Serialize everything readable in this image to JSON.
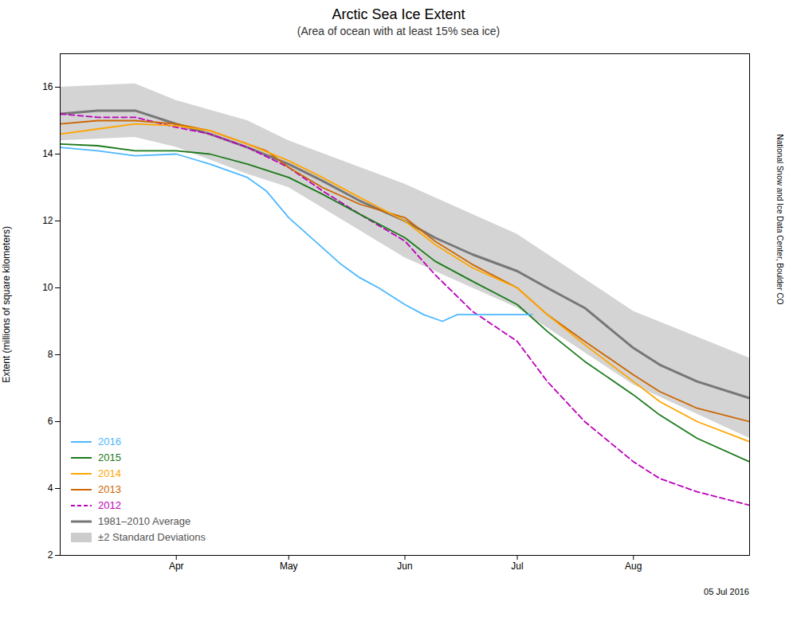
{
  "chart_data": {
    "type": "line",
    "title": "Arctic Sea Ice Extent",
    "subtitle": "(Area of ocean with at least 15% sea ice)",
    "ylabel": "Extent (millions of square kilometers)",
    "annotations": [
      "05 Jul 2016",
      "National Snow and Ice Data Center, Boulder CO"
    ],
    "xlim": [
      60,
      244
    ],
    "xticks": [
      {
        "value": 91,
        "label": "Apr"
      },
      {
        "value": 121,
        "label": "May"
      },
      {
        "value": 152,
        "label": "Jun"
      },
      {
        "value": 182,
        "label": "Jul"
      },
      {
        "value": 213,
        "label": "Aug"
      }
    ],
    "ylim": [
      2,
      17
    ],
    "yticks": [
      2,
      4,
      6,
      8,
      10,
      12,
      14,
      16
    ],
    "grid": false,
    "legend": "lower left",
    "series": [
      {
        "name": "2016",
        "color": "#4db8ff",
        "line_style": "solid",
        "x": [
          60,
          70,
          80,
          91,
          100,
          110,
          115,
          121,
          125,
          130,
          135,
          140,
          145,
          152,
          157,
          162,
          166,
          170,
          172,
          176,
          182,
          186
        ],
        "values": [
          14.2,
          14.1,
          13.95,
          14.0,
          13.7,
          13.3,
          12.9,
          12.1,
          11.7,
          11.2,
          10.7,
          10.3,
          10.0,
          9.5,
          9.2,
          9.0,
          9.2,
          9.2,
          9.2,
          9.2,
          9.2,
          9.2
        ]
      },
      {
        "name": "2015",
        "color": "#1a7a1a",
        "line_style": "solid",
        "x": [
          60,
          70,
          80,
          91,
          100,
          110,
          121,
          130,
          140,
          152,
          160,
          170,
          182,
          190,
          200,
          213,
          220,
          230,
          244
        ],
        "values": [
          14.3,
          14.25,
          14.1,
          14.1,
          14.0,
          13.7,
          13.3,
          12.8,
          12.2,
          11.5,
          10.8,
          10.2,
          9.5,
          8.7,
          7.8,
          6.8,
          6.2,
          5.5,
          4.8
        ]
      },
      {
        "name": "2014",
        "color": "#FFA500",
        "line_style": "solid",
        "x": [
          60,
          70,
          80,
          91,
          100,
          110,
          121,
          130,
          140,
          152,
          160,
          170,
          182,
          190,
          200,
          213,
          220,
          230,
          244
        ],
        "values": [
          14.6,
          14.75,
          14.9,
          14.85,
          14.7,
          14.3,
          13.8,
          13.3,
          12.7,
          12.0,
          11.3,
          10.6,
          10.0,
          9.2,
          8.3,
          7.2,
          6.6,
          6.0,
          5.4
        ]
      },
      {
        "name": "2013",
        "color": "#cc6600",
        "line_style": "solid",
        "x": [
          60,
          70,
          80,
          91,
          100,
          110,
          115,
          121,
          130,
          140,
          152,
          160,
          170,
          182,
          190,
          200,
          213,
          220,
          230,
          244
        ],
        "values": [
          14.9,
          15.0,
          15.0,
          14.9,
          14.7,
          14.3,
          14.1,
          13.6,
          13.0,
          12.5,
          12.1,
          11.4,
          10.7,
          10.0,
          9.2,
          8.4,
          7.4,
          6.9,
          6.4,
          6.0
        ]
      },
      {
        "name": "2012",
        "color": "#bb00bb",
        "line_style": "dashed",
        "x": [
          60,
          70,
          80,
          91,
          100,
          110,
          121,
          130,
          140,
          152,
          160,
          170,
          182,
          190,
          200,
          213,
          220,
          230,
          244
        ],
        "values": [
          15.2,
          15.1,
          15.1,
          14.8,
          14.6,
          14.2,
          13.6,
          12.9,
          12.2,
          11.4,
          10.4,
          9.3,
          8.4,
          7.2,
          6.0,
          4.8,
          4.3,
          3.9,
          3.5
        ]
      },
      {
        "name": "1981–2010 Average",
        "color": "#777777",
        "line_style": "solid",
        "x": [
          60,
          70,
          80,
          91,
          100,
          110,
          121,
          130,
          140,
          152,
          160,
          170,
          182,
          190,
          200,
          213,
          220,
          230,
          244
        ],
        "values": [
          15.2,
          15.3,
          15.3,
          14.9,
          14.6,
          14.2,
          13.7,
          13.2,
          12.6,
          12.0,
          11.5,
          11.0,
          10.5,
          10.0,
          9.4,
          8.2,
          7.7,
          7.2,
          6.7
        ]
      },
      {
        "name": "±2 Standard Deviations",
        "type": "band",
        "color": "#cccccc",
        "x": [
          60,
          80,
          91,
          110,
          121,
          152,
          182,
          213,
          244
        ],
        "lower": [
          14.4,
          14.5,
          14.2,
          13.4,
          13.0,
          10.9,
          9.4,
          7.1,
          5.5
        ],
        "upper": [
          16.0,
          16.1,
          15.6,
          15.0,
          14.4,
          13.1,
          11.6,
          9.3,
          7.9
        ]
      }
    ]
  }
}
